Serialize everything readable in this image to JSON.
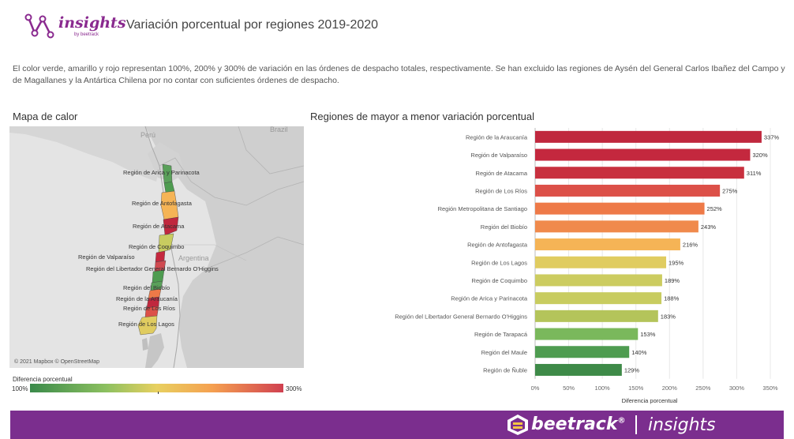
{
  "header": {
    "logo_text": "insights",
    "logo_byline": "by beetrack",
    "title": "Variación porcentual por regiones 2019-2020"
  },
  "description": "El color verde, amarillo y rojo representan 100%, 200% y 300% de variación  en las órdenes de despacho totales, respectivamente. Se han excluido las regiones de Aysén del General Carlos Ibañez del Campo y de Magallanes y la Antártica Chilena por no contar con suficientes órdenes de despacho.",
  "map": {
    "title": "Mapa de calor",
    "countries": [
      "Perú",
      "Brazil",
      "Argentina"
    ],
    "labels": [
      "Región de Arica y Parinacota",
      "Región de Antofagasta",
      "Región de Atacama",
      "Región de Coquimbo",
      "Región de Valparaíso",
      "Región del Libertador General Bernardo O'Higgins",
      "Región del Biobío",
      "Región de la Araucanía",
      "Región de Los Ríos",
      "Región de Los Lagos"
    ],
    "credit": "© 2021 Mapbox © OpenStreetMap",
    "legend": {
      "title": "Diferencia porcentual",
      "min": "100%",
      "max": "300%"
    }
  },
  "chart_data": {
    "type": "bar",
    "orientation": "horizontal",
    "title": "Regiones de mayor a menor variación porcentual",
    "xlabel": "Diferencia porcentual",
    "xlim": [
      0,
      350
    ],
    "xticks": [
      "0%",
      "50%",
      "100%",
      "150%",
      "200%",
      "250%",
      "300%",
      "350%"
    ],
    "grid": true,
    "categories": [
      "Región de la Araucanía",
      "Región de Valparaíso",
      "Región de Atacama",
      "Región de Los Ríos",
      "Región Metropolitana de Santiago",
      "Región del Biobío",
      "Región de Antofagasta",
      "Región de Los Lagos",
      "Región de Coquimbo",
      "Región de Arica y Parinacota",
      "Región del Libertador General Bernardo O'Higgins",
      "Región de Tarapacá",
      "Región del Maule",
      "Región de Ñuble"
    ],
    "values": [
      337,
      320,
      311,
      275,
      252,
      243,
      216,
      195,
      189,
      188,
      183,
      153,
      140,
      129
    ],
    "value_labels": [
      "337%",
      "320%",
      "311%",
      "275%",
      "252%",
      "243%",
      "216%",
      "195%",
      "189%",
      "188%",
      "183%",
      "153%",
      "140%",
      "129%"
    ],
    "colors": [
      "#c0283e",
      "#c4283e",
      "#c8303e",
      "#dc5048",
      "#ee7a48",
      "#f08a4c",
      "#f5b456",
      "#e0cc60",
      "#cccc60",
      "#c8cc60",
      "#b4c45a",
      "#7ab85c",
      "#4e9c50",
      "#3e8a48"
    ]
  },
  "footer": {
    "brand": "beetrack",
    "registered": "®",
    "product": "insights"
  }
}
